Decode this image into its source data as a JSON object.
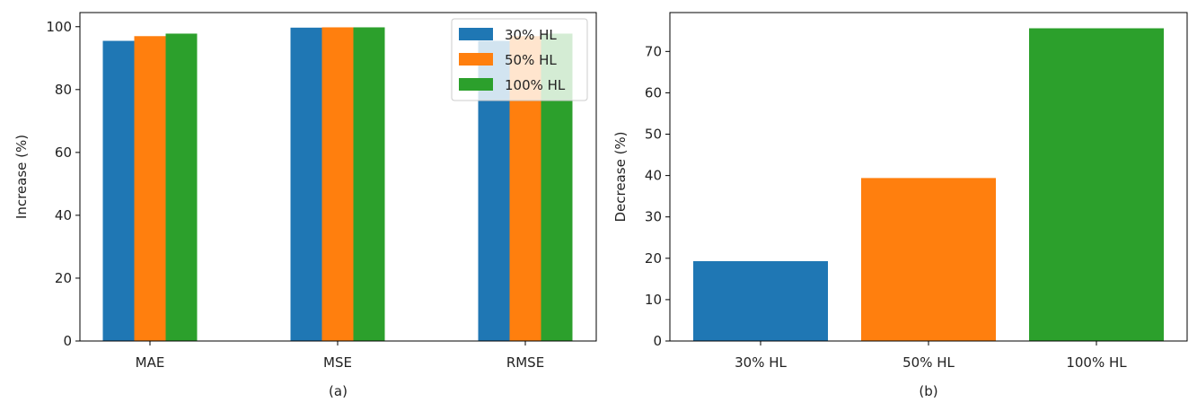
{
  "chart_data": [
    {
      "type": "bar",
      "caption": "(a)",
      "title": "",
      "xlabel": "",
      "ylabel": "Increase (%)",
      "categories": [
        "MAE",
        "MSE",
        "RMSE"
      ],
      "series": [
        {
          "name": "30% HL",
          "color": "#1f77b4",
          "values": [
            95.5,
            99.7,
            95.5
          ]
        },
        {
          "name": "50% HL",
          "color": "#ff7f0e",
          "values": [
            97.0,
            99.8,
            97.0
          ]
        },
        {
          "name": "100% HL",
          "color": "#2ca02c",
          "values": [
            97.8,
            99.8,
            97.8
          ]
        }
      ],
      "ylim": [
        0,
        104.5
      ],
      "yticks": [
        0,
        20,
        40,
        60,
        80,
        100
      ],
      "grid": false,
      "legend": "top-right"
    },
    {
      "type": "bar",
      "caption": "(b)",
      "title": "",
      "xlabel": "",
      "ylabel": "Decrease (%)",
      "categories": [
        "30% HL",
        "50% HL",
        "100% HL"
      ],
      "colors": [
        "#1f77b4",
        "#ff7f0e",
        "#2ca02c"
      ],
      "values": [
        19.3,
        39.4,
        75.6
      ],
      "ylim": [
        0,
        79.4
      ],
      "yticks": [
        0,
        10,
        20,
        30,
        40,
        50,
        60,
        70
      ],
      "grid": false
    }
  ]
}
